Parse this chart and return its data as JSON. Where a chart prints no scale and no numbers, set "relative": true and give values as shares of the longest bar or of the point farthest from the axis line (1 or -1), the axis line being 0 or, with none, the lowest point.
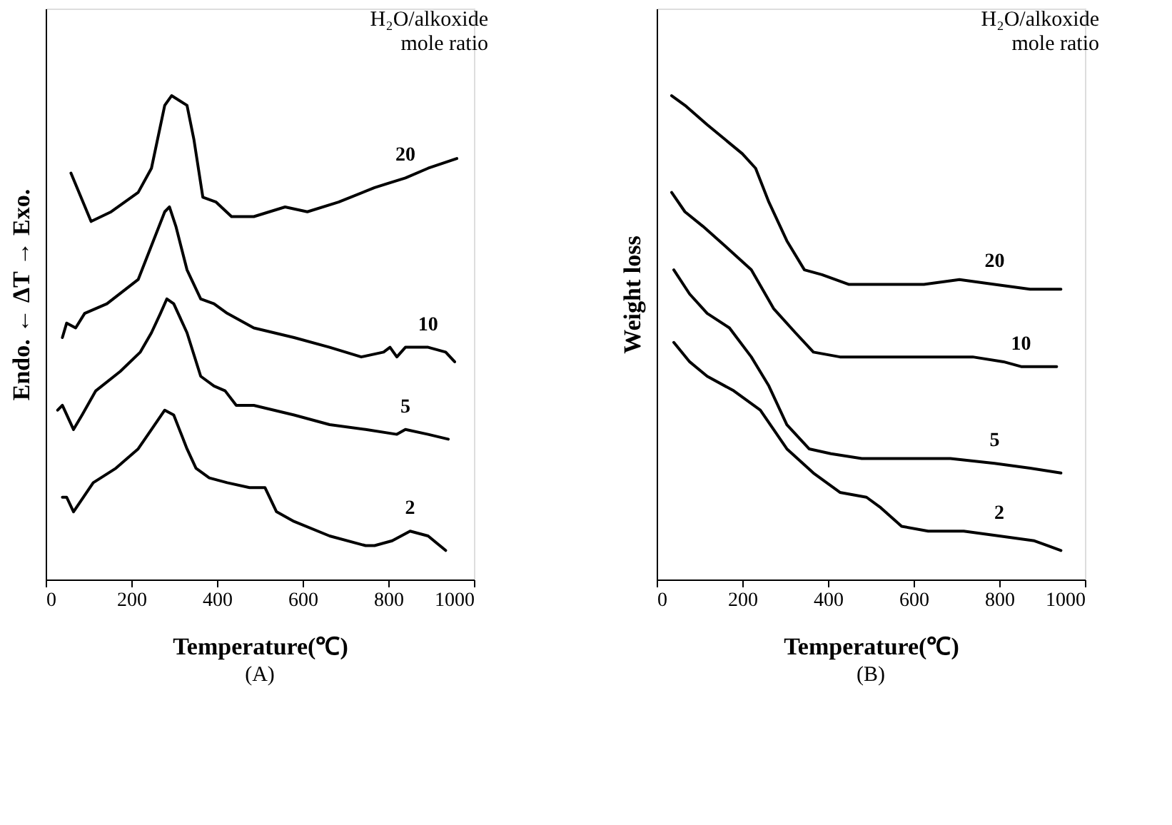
{
  "chart_data": [
    {
      "type": "line",
      "title": "(A)",
      "xlabel": "Temperature(℃)",
      "ylabel": "Endo. ← ΔT → Exo.",
      "legend_title": "H₂O/alkoxide\nmole ratio",
      "relative": true,
      "xlim": [
        0,
        1000
      ],
      "xticks": [
        0,
        200,
        400,
        600,
        800,
        1000
      ],
      "grid": false,
      "tick_labels": "x",
      "line_style": "solid",
      "marker": "none",
      "series": [
        {
          "name": "20",
          "color": "#000000",
          "x": [
            59,
            106,
            153,
            216,
            247,
            278,
            294,
            330,
            346,
            367,
            398,
            434,
            486,
            559,
            611,
            684,
            768,
            840,
            893,
            960
          ],
          "values": [
            0.84,
            0.74,
            0.76,
            0.8,
            0.85,
            0.98,
            1.0,
            0.98,
            0.91,
            0.79,
            0.78,
            0.75,
            0.75,
            0.77,
            0.76,
            0.78,
            0.81,
            0.83,
            0.85,
            0.87
          ]
        },
        {
          "name": "10",
          "color": "#000000",
          "x": [
            39,
            49,
            70,
            91,
            143,
            216,
            247,
            278,
            289,
            304,
            330,
            362,
            393,
            424,
            486,
            580,
            663,
            737,
            789,
            804,
            820,
            840,
            893,
            934,
            955
          ],
          "values": [
            0.5,
            0.53,
            0.52,
            0.55,
            0.57,
            0.62,
            0.69,
            0.76,
            0.77,
            0.73,
            0.64,
            0.58,
            0.57,
            0.55,
            0.52,
            0.5,
            0.48,
            0.46,
            0.47,
            0.48,
            0.46,
            0.48,
            0.48,
            0.47,
            0.45
          ]
        },
        {
          "name": "5",
          "color": "#000000",
          "x": [
            28,
            39,
            65,
            85,
            117,
            174,
            221,
            247,
            268,
            283,
            299,
            330,
            362,
            393,
            419,
            445,
            486,
            580,
            663,
            747,
            820,
            840,
            893,
            940
          ],
          "values": [
            0.35,
            0.36,
            0.31,
            0.34,
            0.39,
            0.43,
            0.47,
            0.51,
            0.55,
            0.58,
            0.57,
            0.51,
            0.42,
            0.4,
            0.39,
            0.36,
            0.36,
            0.34,
            0.32,
            0.31,
            0.3,
            0.31,
            0.3,
            0.29
          ]
        },
        {
          "name": "2",
          "color": "#000000",
          "x": [
            39,
            49,
            65,
            111,
            164,
            216,
            247,
            278,
            299,
            330,
            351,
            382,
            424,
            476,
            512,
            539,
            580,
            663,
            747,
            768,
            809,
            851,
            893,
            934
          ],
          "values": [
            0.17,
            0.17,
            0.14,
            0.2,
            0.23,
            0.27,
            0.31,
            0.35,
            0.34,
            0.27,
            0.23,
            0.21,
            0.2,
            0.19,
            0.19,
            0.14,
            0.12,
            0.09,
            0.07,
            0.07,
            0.08,
            0.1,
            0.09,
            0.06
          ]
        }
      ]
    },
    {
      "type": "line",
      "title": "(B)",
      "xlabel": "Temperature(℃)",
      "ylabel": "Weight loss",
      "legend_title": "H₂O/alkoxide\nmole ratio",
      "relative": true,
      "xlim": [
        0,
        1000
      ],
      "xticks": [
        0,
        200,
        400,
        600,
        800,
        1000
      ],
      "grid": false,
      "tick_labels": "x",
      "line_style": "solid",
      "marker": "none",
      "series": [
        {
          "name": "20",
          "color": "#000000",
          "x": [
            35,
            66,
            118,
            159,
            200,
            231,
            262,
            304,
            345,
            386,
            448,
            531,
            624,
            707,
            789,
            872,
            944
          ],
          "values": [
            1.0,
            0.98,
            0.94,
            0.91,
            0.88,
            0.85,
            0.78,
            0.7,
            0.64,
            0.63,
            0.61,
            0.61,
            0.61,
            0.62,
            0.61,
            0.6,
            0.6
          ]
        },
        {
          "name": "10",
          "color": "#000000",
          "x": [
            35,
            66,
            108,
            159,
            221,
            273,
            324,
            366,
            428,
            531,
            655,
            738,
            810,
            851,
            893,
            934
          ],
          "values": [
            0.8,
            0.76,
            0.73,
            0.69,
            0.64,
            0.56,
            0.51,
            0.47,
            0.46,
            0.46,
            0.46,
            0.46,
            0.45,
            0.44,
            0.44,
            0.44
          ]
        },
        {
          "name": "5",
          "color": "#000000",
          "x": [
            40,
            77,
            118,
            170,
            221,
            262,
            304,
            356,
            407,
            479,
            583,
            686,
            789,
            872,
            944
          ],
          "values": [
            0.64,
            0.59,
            0.55,
            0.52,
            0.46,
            0.4,
            0.32,
            0.27,
            0.26,
            0.25,
            0.25,
            0.25,
            0.24,
            0.23,
            0.22
          ]
        },
        {
          "name": "2",
          "color": "#000000",
          "x": [
            40,
            77,
            118,
            180,
            242,
            304,
            366,
            428,
            490,
            521,
            572,
            634,
            717,
            800,
            882,
            944
          ],
          "values": [
            0.49,
            0.45,
            0.42,
            0.39,
            0.35,
            0.27,
            0.22,
            0.18,
            0.17,
            0.15,
            0.11,
            0.1,
            0.1,
            0.09,
            0.08,
            0.06
          ]
        }
      ]
    }
  ]
}
